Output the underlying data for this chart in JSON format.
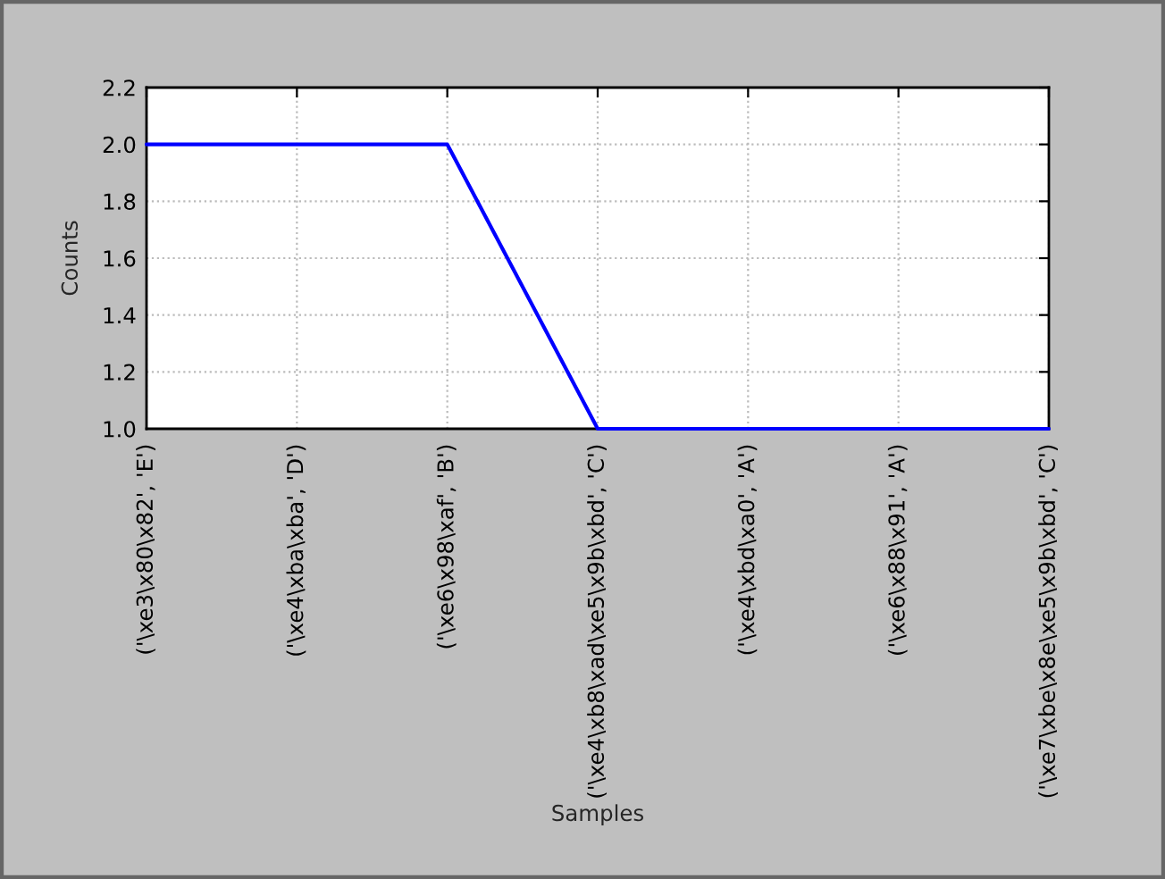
{
  "chart_data": {
    "type": "line",
    "xlabel": "Samples",
    "ylabel": "Counts",
    "categories": [
      "('\\xe3\\x80\\x82', 'E')",
      "('\\xe4\\xba\\xba', 'D')",
      "('\\xe6\\x98\\xaf', 'B')",
      "('\\xe4\\xb8\\xad\\xe5\\x9b\\xbd', 'C')",
      "('\\xe4\\xbd\\xa0', 'A')",
      "('\\xe6\\x88\\x91', 'A')",
      "('\\xe7\\xbe\\x8e\\xe5\\x9b\\xbd', 'C')"
    ],
    "series": [
      {
        "color": "#0000ff",
        "values": [
          2,
          2,
          2,
          1,
          1,
          1,
          1
        ]
      }
    ],
    "ylim": [
      1.0,
      2.2
    ],
    "yticks": [
      {
        "value": 1.0,
        "label": "1.0"
      },
      {
        "value": 1.2,
        "label": "1.2"
      },
      {
        "value": 1.4,
        "label": "1.4"
      },
      {
        "value": 1.6,
        "label": "1.6"
      },
      {
        "value": 1.8,
        "label": "1.8"
      },
      {
        "value": 2.0,
        "label": "2.0"
      },
      {
        "value": 2.2,
        "label": "2.2"
      }
    ],
    "grid": true
  }
}
